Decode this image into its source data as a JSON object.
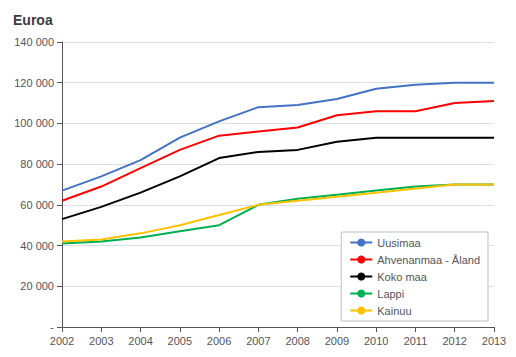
{
  "chart_data": {
    "type": "line",
    "title": "Euroa",
    "x": [
      2002,
      2003,
      2004,
      2005,
      2006,
      2007,
      2008,
      2009,
      2010,
      2011,
      2012,
      2013
    ],
    "series": [
      {
        "name": "Uusimaa",
        "color": "#4472C4",
        "values": [
          67000,
          74000,
          82000,
          93000,
          101000,
          108000,
          109000,
          112000,
          117000,
          119000,
          120000,
          120000
        ]
      },
      {
        "name": "Ahvenanmaa - Åland",
        "color": "#FF0000",
        "values": [
          62000,
          69000,
          78000,
          87000,
          94000,
          96000,
          98000,
          104000,
          106000,
          106000,
          110000,
          111000
        ]
      },
      {
        "name": "Koko maa",
        "color": "#000000",
        "values": [
          53000,
          59000,
          66000,
          74000,
          83000,
          86000,
          87000,
          91000,
          93000,
          93000,
          93000,
          93000
        ]
      },
      {
        "name": "Lappi",
        "color": "#00B050",
        "values": [
          41000,
          42000,
          44000,
          47000,
          50000,
          60000,
          63000,
          65000,
          67000,
          69000,
          70000,
          70000
        ]
      },
      {
        "name": "Kainuu",
        "color": "#FFC000",
        "values": [
          42000,
          43000,
          46000,
          50000,
          55000,
          60000,
          62000,
          64000,
          66000,
          68000,
          70000,
          70000
        ]
      }
    ],
    "xlim": [
      2002,
      2013
    ],
    "xticks": [
      2002,
      2003,
      2004,
      2005,
      2006,
      2007,
      2008,
      2009,
      2010,
      2011,
      2012,
      2013
    ],
    "ylim": [
      0,
      140000
    ],
    "yticks": [
      {
        "value": 0,
        "label": "-"
      },
      {
        "value": 20000,
        "label": "20 000"
      },
      {
        "value": 40000,
        "label": "40 000"
      },
      {
        "value": 60000,
        "label": "60 000"
      },
      {
        "value": 80000,
        "label": "80 000"
      },
      {
        "value": 100000,
        "label": "100 000"
      },
      {
        "value": 120000,
        "label": "120 000"
      },
      {
        "value": 140000,
        "label": "140 000"
      }
    ],
    "grid": true,
    "legend": "lower right"
  }
}
